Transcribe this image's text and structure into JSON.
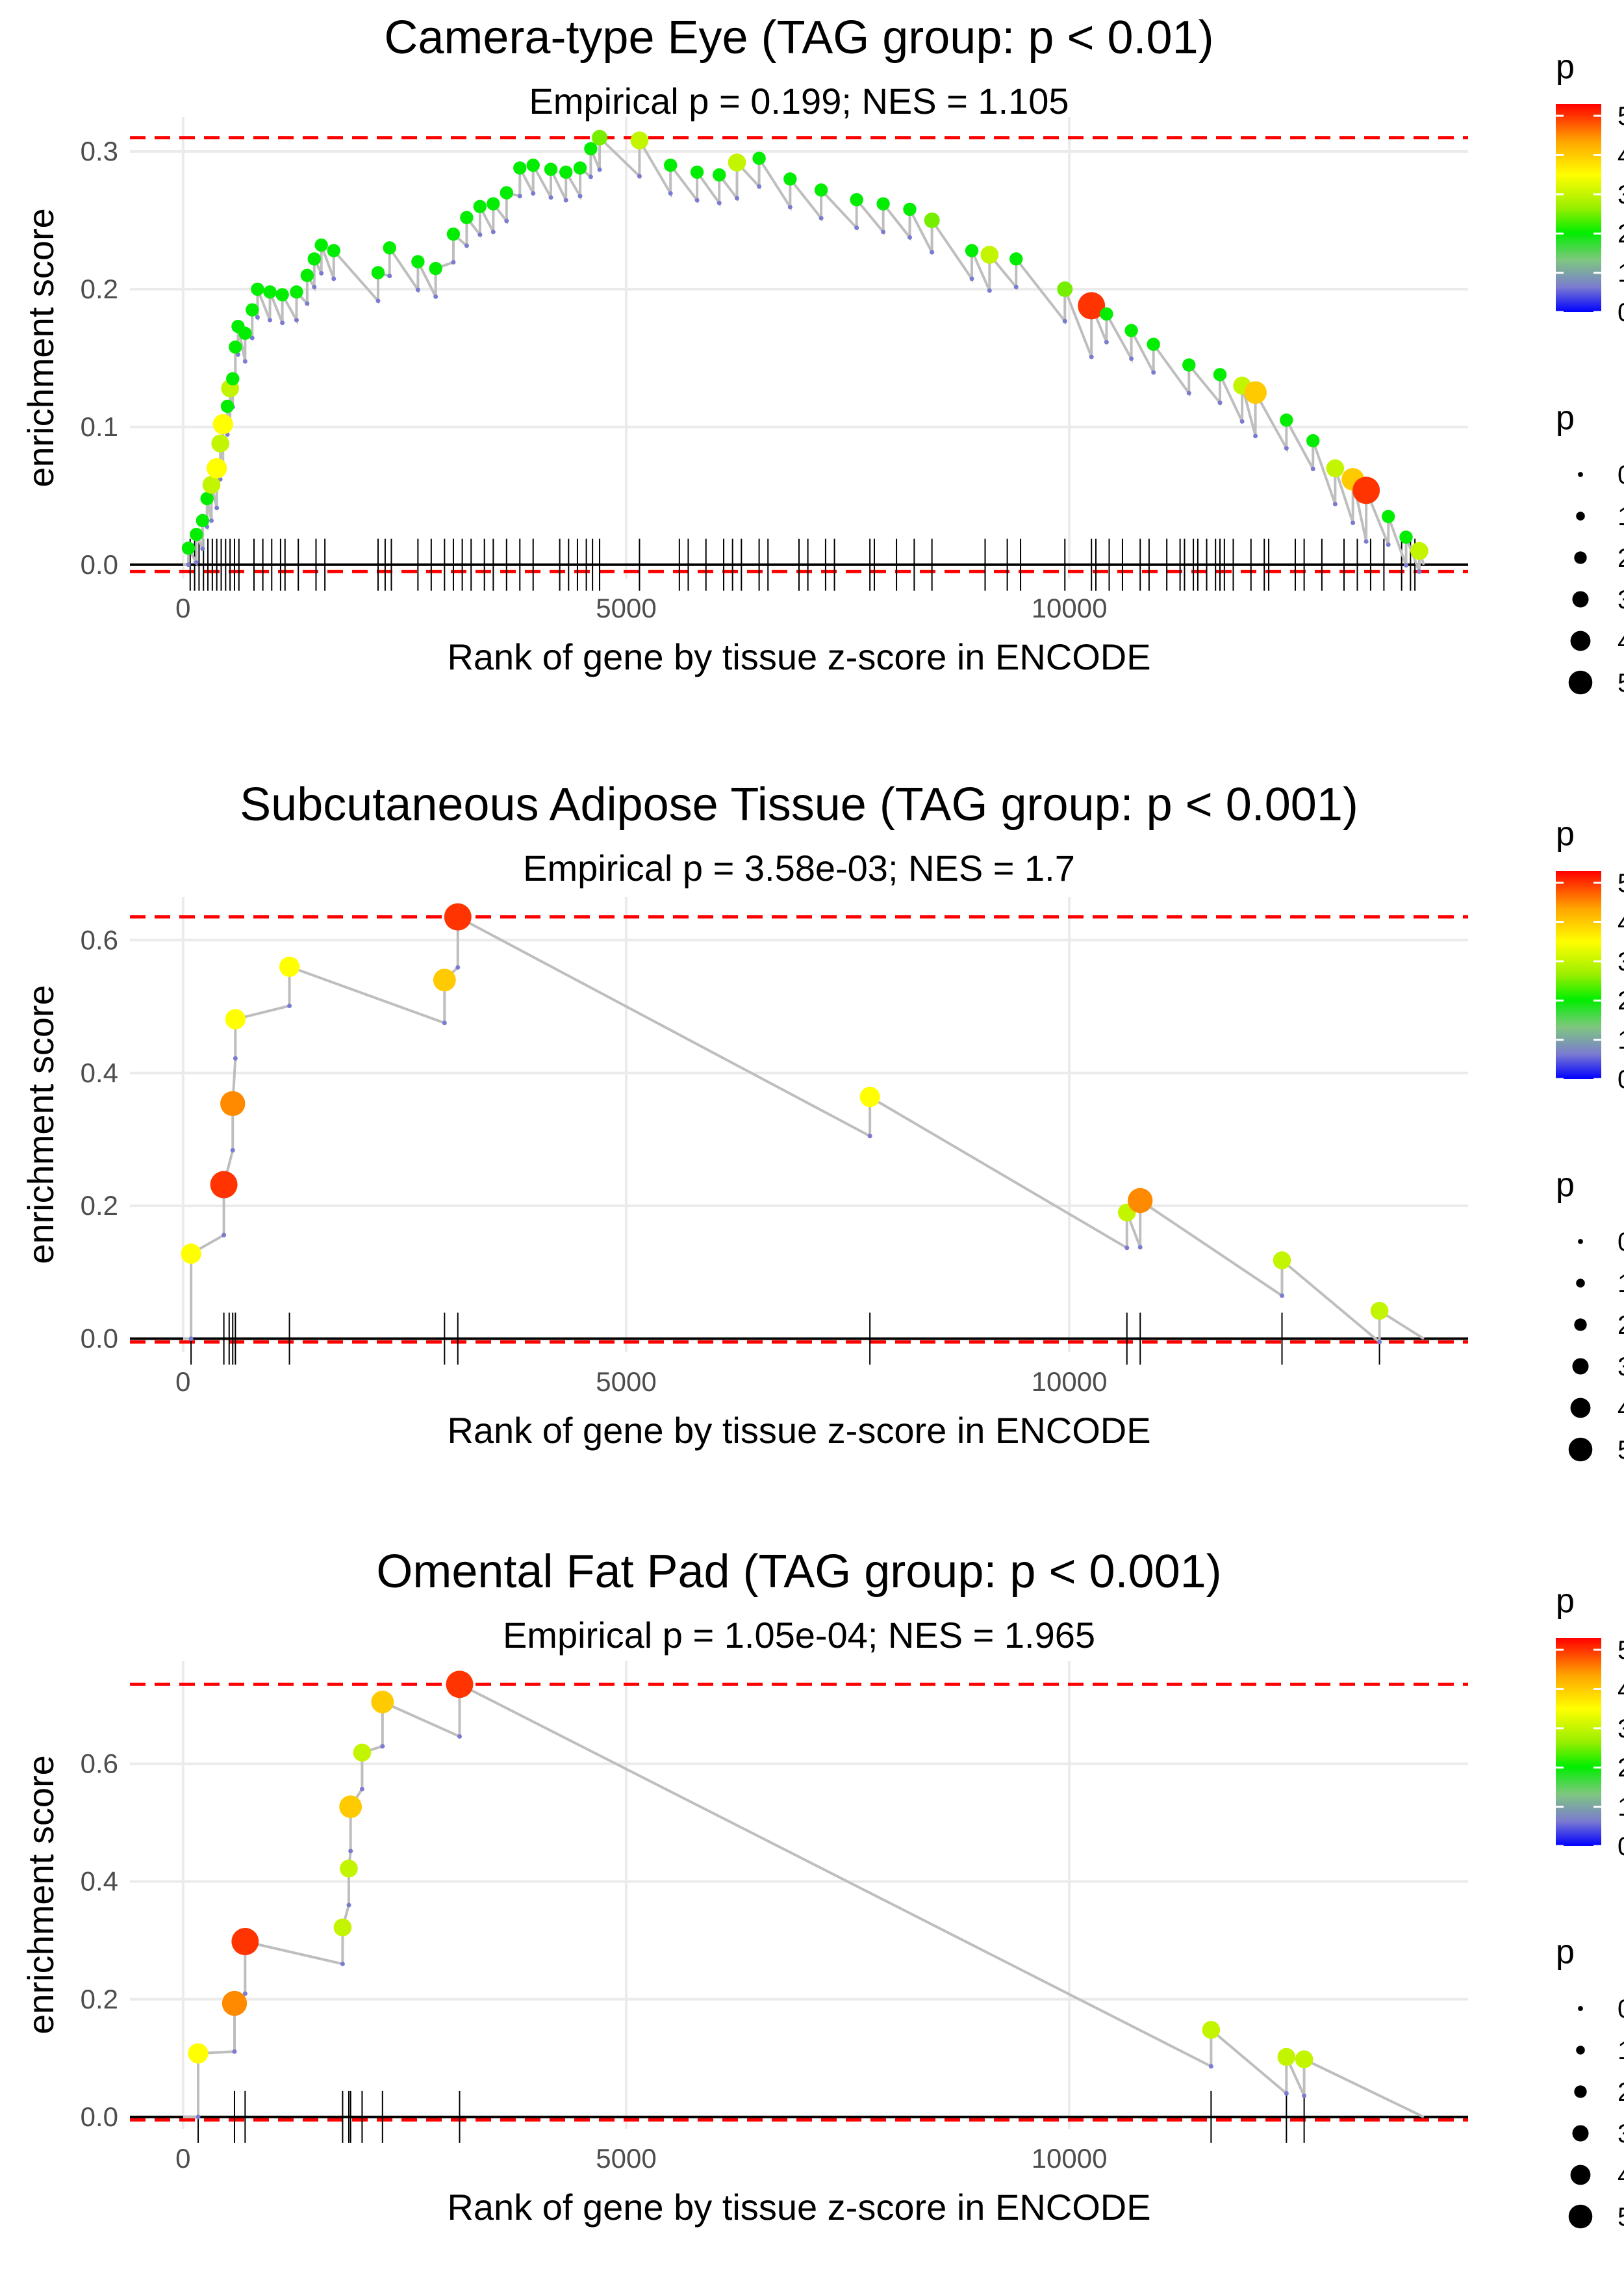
{
  "chart_data": [
    {
      "type": "scatter",
      "title": "Camera-type Eye (TAG group: p < 0.01)",
      "subtitle": "Empirical p = 0.199; NES = 1.105",
      "xlabel": "Rank of gene by tissue z-score in ENCODE",
      "ylabel": "enrichment score",
      "xlim": [
        -600,
        14500
      ],
      "ylim": [
        -0.01,
        0.325
      ],
      "xticks": [
        0,
        5000,
        10000
      ],
      "xtick_labels": [
        "0",
        "5000",
        "10000"
      ],
      "yticks": [
        0,
        0.1,
        0.2,
        0.3
      ],
      "ytick_labels": [
        "0.0",
        "0.1",
        "0.2",
        "0.3"
      ],
      "max_es": 0.31,
      "min_es": -0.005,
      "end_rank": 14000,
      "points": [
        {
          "x": 60,
          "y": 0.012,
          "p": 2
        },
        {
          "x": 150,
          "y": 0.022,
          "p": 2
        },
        {
          "x": 220,
          "y": 0.032,
          "p": 2
        },
        {
          "x": 270,
          "y": 0.048,
          "p": 2
        },
        {
          "x": 320,
          "y": 0.058,
          "p": 3
        },
        {
          "x": 380,
          "y": 0.07,
          "p": 3.5
        },
        {
          "x": 420,
          "y": 0.088,
          "p": 3
        },
        {
          "x": 450,
          "y": 0.102,
          "p": 3.5
        },
        {
          "x": 500,
          "y": 0.115,
          "p": 2
        },
        {
          "x": 530,
          "y": 0.128,
          "p": 3
        },
        {
          "x": 560,
          "y": 0.135,
          "p": 2
        },
        {
          "x": 590,
          "y": 0.158,
          "p": 2
        },
        {
          "x": 620,
          "y": 0.173,
          "p": 2
        },
        {
          "x": 700,
          "y": 0.168,
          "p": 2
        },
        {
          "x": 780,
          "y": 0.185,
          "p": 2
        },
        {
          "x": 840,
          "y": 0.2,
          "p": 2
        },
        {
          "x": 980,
          "y": 0.198,
          "p": 2
        },
        {
          "x": 1120,
          "y": 0.196,
          "p": 2
        },
        {
          "x": 1280,
          "y": 0.198,
          "p": 2
        },
        {
          "x": 1400,
          "y": 0.21,
          "p": 2
        },
        {
          "x": 1480,
          "y": 0.222,
          "p": 2
        },
        {
          "x": 1560,
          "y": 0.232,
          "p": 2
        },
        {
          "x": 1700,
          "y": 0.228,
          "p": 2
        },
        {
          "x": 2200,
          "y": 0.212,
          "p": 2
        },
        {
          "x": 2330,
          "y": 0.23,
          "p": 2
        },
        {
          "x": 2650,
          "y": 0.22,
          "p": 2
        },
        {
          "x": 2850,
          "y": 0.215,
          "p": 2
        },
        {
          "x": 3050,
          "y": 0.24,
          "p": 2
        },
        {
          "x": 3200,
          "y": 0.252,
          "p": 2
        },
        {
          "x": 3350,
          "y": 0.26,
          "p": 2
        },
        {
          "x": 3500,
          "y": 0.262,
          "p": 2
        },
        {
          "x": 3650,
          "y": 0.27,
          "p": 2
        },
        {
          "x": 3800,
          "y": 0.288,
          "p": 2
        },
        {
          "x": 3950,
          "y": 0.29,
          "p": 2
        },
        {
          "x": 4150,
          "y": 0.287,
          "p": 2
        },
        {
          "x": 4320,
          "y": 0.285,
          "p": 2
        },
        {
          "x": 4480,
          "y": 0.288,
          "p": 2
        },
        {
          "x": 4600,
          "y": 0.302,
          "p": 2
        },
        {
          "x": 4700,
          "y": 0.31,
          "p": 2.5
        },
        {
          "x": 5150,
          "y": 0.308,
          "p": 3
        },
        {
          "x": 5500,
          "y": 0.29,
          "p": 2
        },
        {
          "x": 5800,
          "y": 0.285,
          "p": 2
        },
        {
          "x": 6050,
          "y": 0.283,
          "p": 2
        },
        {
          "x": 6250,
          "y": 0.292,
          "p": 3
        },
        {
          "x": 6500,
          "y": 0.295,
          "p": 2
        },
        {
          "x": 6850,
          "y": 0.28,
          "p": 2
        },
        {
          "x": 7200,
          "y": 0.272,
          "p": 2
        },
        {
          "x": 7600,
          "y": 0.265,
          "p": 2
        },
        {
          "x": 7900,
          "y": 0.262,
          "p": 2
        },
        {
          "x": 8200,
          "y": 0.258,
          "p": 2
        },
        {
          "x": 8450,
          "y": 0.25,
          "p": 2.5
        },
        {
          "x": 8900,
          "y": 0.228,
          "p": 2
        },
        {
          "x": 9100,
          "y": 0.225,
          "p": 3
        },
        {
          "x": 9400,
          "y": 0.222,
          "p": 2
        },
        {
          "x": 9950,
          "y": 0.2,
          "p": 2.5
        },
        {
          "x": 10250,
          "y": 0.188,
          "p": 5
        },
        {
          "x": 10420,
          "y": 0.182,
          "p": 2
        },
        {
          "x": 10700,
          "y": 0.17,
          "p": 2
        },
        {
          "x": 10950,
          "y": 0.16,
          "p": 2
        },
        {
          "x": 11350,
          "y": 0.145,
          "p": 2
        },
        {
          "x": 11700,
          "y": 0.138,
          "p": 2
        },
        {
          "x": 11950,
          "y": 0.13,
          "p": 3
        },
        {
          "x": 12100,
          "y": 0.125,
          "p": 4
        },
        {
          "x": 12450,
          "y": 0.105,
          "p": 2
        },
        {
          "x": 12750,
          "y": 0.09,
          "p": 2
        },
        {
          "x": 13000,
          "y": 0.07,
          "p": 3
        },
        {
          "x": 13200,
          "y": 0.062,
          "p": 4
        },
        {
          "x": 13350,
          "y": 0.054,
          "p": 5
        },
        {
          "x": 13600,
          "y": 0.035,
          "p": 2
        },
        {
          "x": 13800,
          "y": 0.02,
          "p": 2
        },
        {
          "x": 13950,
          "y": 0.01,
          "p": 3
        }
      ],
      "rug": [
        80,
        130,
        180,
        230,
        280,
        330,
        380,
        430,
        480,
        530,
        580,
        630,
        800,
        900,
        1000,
        1100,
        1150,
        1300,
        1500,
        1600,
        2200,
        2280,
        2350,
        2650,
        2800,
        2950,
        3050,
        3150,
        3250,
        3400,
        3500,
        3650,
        3800,
        3950,
        4250,
        4350,
        4450,
        4550,
        4620,
        4700,
        5150,
        5600,
        5700,
        5900,
        6100,
        6200,
        6300,
        6500,
        6600,
        6950,
        7050,
        7250,
        7350,
        7750,
        7800,
        8050,
        8250,
        8450,
        9050,
        9300,
        9450,
        9950,
        10250,
        10300,
        10450,
        10600,
        10800,
        10900,
        11100,
        11250,
        11300,
        11400,
        11450,
        11550,
        11650,
        11700,
        11750,
        11850,
        12050,
        12200,
        12250,
        12550,
        12650,
        12850,
        13100,
        13250,
        13400,
        13550,
        13750,
        13850,
        13900
      ]
    },
    {
      "type": "scatter",
      "title": "Subcutaneous Adipose Tissue (TAG group: p < 0.001)",
      "subtitle": "Empirical p = 3.58e-03; NES = 1.7",
      "xlabel": "Rank of gene by tissue z-score in ENCODE",
      "ylabel": "enrichment score",
      "xlim": [
        -600,
        14500
      ],
      "ylim": [
        -0.02,
        0.665
      ],
      "xticks": [
        0,
        5000,
        10000
      ],
      "xtick_labels": [
        "0",
        "5000",
        "10000"
      ],
      "yticks": [
        0,
        0.2,
        0.4,
        0.6
      ],
      "ytick_labels": [
        "0.0",
        "0.2",
        "0.4",
        "0.6"
      ],
      "max_es": 0.635,
      "min_es": -0.005,
      "end_rank": 14000,
      "points": [
        {
          "x": 90,
          "y": 0.128,
          "p": 3.5
        },
        {
          "x": 460,
          "y": 0.232,
          "p": 5
        },
        {
          "x": 560,
          "y": 0.354,
          "p": 4.5
        },
        {
          "x": 590,
          "y": 0.481,
          "p": 3.5
        },
        {
          "x": 1200,
          "y": 0.56,
          "p": 3.5
        },
        {
          "x": 2950,
          "y": 0.54,
          "p": 4
        },
        {
          "x": 3100,
          "y": 0.635,
          "p": 5
        },
        {
          "x": 7750,
          "y": 0.364,
          "p": 3.5
        },
        {
          "x": 10650,
          "y": 0.19,
          "p": 3
        },
        {
          "x": 10800,
          "y": 0.208,
          "p": 4.5
        },
        {
          "x": 12400,
          "y": 0.118,
          "p": 3
        },
        {
          "x": 13500,
          "y": 0.042,
          "p": 3
        }
      ],
      "rug": [
        90,
        460,
        520,
        560,
        590,
        1200,
        2950,
        3100,
        7750,
        10650,
        10800,
        12400,
        13500
      ]
    },
    {
      "type": "scatter",
      "title": "Omental Fat Pad (TAG group: p < 0.001)",
      "subtitle": "Empirical p = 1.05e-04; NES = 1.965",
      "xlabel": "Rank of gene by tissue z-score in ENCODE",
      "ylabel": "enrichment score",
      "xlim": [
        -600,
        14500
      ],
      "ylim": [
        -0.02,
        0.775
      ],
      "xticks": [
        0,
        5000,
        10000
      ],
      "xtick_labels": [
        "0",
        "5000",
        "10000"
      ],
      "yticks": [
        0,
        0.2,
        0.4,
        0.6
      ],
      "ytick_labels": [
        "0.0",
        "0.2",
        "0.4",
        "0.6"
      ],
      "max_es": 0.735,
      "min_es": -0.005,
      "end_rank": 14000,
      "points": [
        {
          "x": 170,
          "y": 0.108,
          "p": 3.5
        },
        {
          "x": 580,
          "y": 0.193,
          "p": 4.5
        },
        {
          "x": 700,
          "y": 0.298,
          "p": 5
        },
        {
          "x": 1800,
          "y": 0.322,
          "p": 3
        },
        {
          "x": 1870,
          "y": 0.422,
          "p": 3
        },
        {
          "x": 1890,
          "y": 0.527,
          "p": 4
        },
        {
          "x": 2020,
          "y": 0.619,
          "p": 3
        },
        {
          "x": 2250,
          "y": 0.705,
          "p": 4
        },
        {
          "x": 3120,
          "y": 0.735,
          "p": 5
        },
        {
          "x": 11600,
          "y": 0.148,
          "p": 3
        },
        {
          "x": 12450,
          "y": 0.102,
          "p": 3
        },
        {
          "x": 12650,
          "y": 0.098,
          "p": 3
        }
      ],
      "rug": [
        170,
        580,
        700,
        1800,
        1870,
        1890,
        2020,
        2250,
        3120,
        11600,
        12450,
        12650
      ]
    }
  ],
  "legend": {
    "color_title": "p",
    "color_ticks": [
      "5",
      "4",
      "3",
      "2",
      "1",
      "0"
    ],
    "color_range": [
      0,
      5.3
    ],
    "size_title": "p",
    "size_labels": [
      "0",
      "1",
      "2",
      "3",
      "4",
      "5"
    ],
    "size_values": [
      0,
      1,
      2,
      3,
      4,
      5
    ]
  },
  "colors": {
    "line": "#bebebe",
    "ref": "#ff0000",
    "grid": "#ebebeb",
    "axis": "#000000",
    "colormap": [
      "#0000ff",
      "#7b7bd0",
      "#7fc77f",
      "#00ee00",
      "#99ee00",
      "#ffff00",
      "#ffa500",
      "#ff0000"
    ]
  }
}
